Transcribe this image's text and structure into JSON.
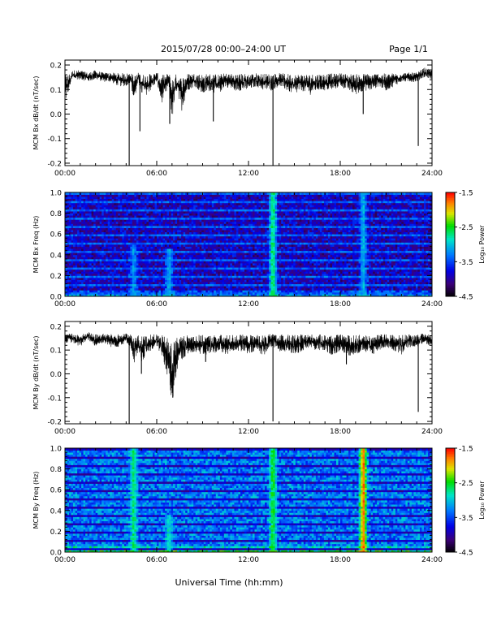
{
  "header": {
    "title": "2015/07/28  00:00–24:00 UT",
    "page": "Page 1/1"
  },
  "footer": {
    "xlabel": "Universal Time (hh:mm)"
  },
  "colors": {
    "trace": "#000000",
    "frame": "#000000",
    "background": "#ffffff"
  },
  "chart_data": [
    {
      "id": "bx_dbdt",
      "type": "line",
      "ylabel": "MCM Bx dB/dt (nT/sec)",
      "xlim": [
        0,
        24
      ],
      "ylim": [
        -0.21,
        0.22
      ],
      "xticks": [
        0,
        6,
        12,
        18,
        24
      ],
      "xtick_labels": [
        "00:00",
        "06:00",
        "12:00",
        "18:00",
        "24:00"
      ],
      "yticks": [
        -0.2,
        -0.1,
        0.0,
        0.1,
        0.2
      ],
      "ytick_labels": [
        "-0.2",
        "-0.1",
        "0.0",
        "0.1",
        "0.2"
      ],
      "series": [
        {
          "x": [
            0,
            0.5,
            1,
            1.5,
            2,
            2.5,
            3,
            3.5,
            4,
            4.3,
            4.5,
            4.8,
            5,
            5.3,
            5.6,
            6,
            6.3,
            6.6,
            6.8,
            7,
            7.3,
            7.6,
            8,
            8.5,
            9,
            9.5,
            10,
            10.5,
            11,
            11.5,
            12,
            12.5,
            13,
            13.5,
            14,
            14.5,
            15,
            15.5,
            16,
            16.5,
            17,
            17.5,
            18,
            18.5,
            19,
            19.5,
            20,
            20.5,
            21,
            21.5,
            22,
            22.5,
            23,
            23.5,
            24
          ],
          "y": [
            0.1,
            0.16,
            0.16,
            0.15,
            0.16,
            0.15,
            0.15,
            0.14,
            0.14,
            0.15,
            0.1,
            0.15,
            0.12,
            0.12,
            0.13,
            0.15,
            0.1,
            0.12,
            0.14,
            0.06,
            0.13,
            0.08,
            0.13,
            0.14,
            0.12,
            0.13,
            0.12,
            0.14,
            0.13,
            0.13,
            0.13,
            0.14,
            0.13,
            0.13,
            0.14,
            0.13,
            0.12,
            0.13,
            0.12,
            0.13,
            0.13,
            0.13,
            0.14,
            0.13,
            0.12,
            0.13,
            0.13,
            0.14,
            0.13,
            0.14,
            0.15,
            0.15,
            0.15,
            0.17,
            0.16
          ],
          "spikes": [
            {
              "x": 4.2,
              "y": -0.21
            },
            {
              "x": 4.9,
              "y": -0.07
            },
            {
              "x": 6.85,
              "y": -0.04
            },
            {
              "x": 9.7,
              "y": -0.03
            },
            {
              "x": 13.6,
              "y": -0.21
            },
            {
              "x": 19.5,
              "y": 0.0
            },
            {
              "x": 23.1,
              "y": -0.13
            }
          ]
        }
      ]
    },
    {
      "id": "bx_spectrogram",
      "type": "heatmap",
      "ylabel": "MCM Bx Freq (Hz)",
      "xlim": [
        0,
        24
      ],
      "ylim": [
        0,
        1.0
      ],
      "xticks": [
        0,
        6,
        12,
        18,
        24
      ],
      "xtick_labels": [
        "00:00",
        "06:00",
        "12:00",
        "18:00",
        "24:00"
      ],
      "yticks": [
        0.0,
        0.2,
        0.4,
        0.6,
        0.8,
        1.0
      ],
      "ytick_labels": [
        "0.0",
        "0.2",
        "0.4",
        "0.6",
        "0.8",
        "1.0"
      ],
      "colorbar": {
        "label": "Log₁₀ Power",
        "range": [
          -4.5,
          -1.5
        ],
        "ticks": [
          -1.5,
          -2.5,
          -3.5,
          -4.5
        ],
        "tick_labels": [
          "-1.5",
          "-2.5",
          "-3.5",
          "-4.5"
        ]
      },
      "base_level": -3.9,
      "line_levels": [
        -3.4
      ],
      "events": [
        {
          "x": 4.5,
          "level": -3.1,
          "fmax": 0.5
        },
        {
          "x": 6.8,
          "level": -3.0,
          "fmax": 0.45
        },
        {
          "x": 13.6,
          "level": -2.5,
          "fmax": 1.0
        },
        {
          "x": 19.5,
          "level": -3.0,
          "fmax": 1.0
        }
      ]
    },
    {
      "id": "by_dbdt",
      "type": "line",
      "ylabel": "MCM By dB/dt (nT/sec)",
      "xlim": [
        0,
        24
      ],
      "ylim": [
        -0.21,
        0.22
      ],
      "xticks": [
        0,
        6,
        12,
        18,
        24
      ],
      "xtick_labels": [
        "00:00",
        "06:00",
        "12:00",
        "18:00",
        "24:00"
      ],
      "yticks": [
        -0.2,
        -0.1,
        0.0,
        0.1,
        0.2
      ],
      "ytick_labels": [
        "-0.2",
        "-0.1",
        "0.0",
        "0.1",
        "0.2"
      ],
      "series": [
        {
          "x": [
            0,
            0.5,
            1,
            1.5,
            2,
            2.5,
            3,
            3.5,
            4,
            4.3,
            4.5,
            4.8,
            5,
            5.3,
            5.6,
            6,
            6.3,
            6.6,
            6.8,
            7,
            7.3,
            7.6,
            8,
            8.5,
            9,
            9.5,
            10,
            10.5,
            11,
            11.5,
            12,
            12.5,
            13,
            13.5,
            14,
            14.5,
            15,
            15.5,
            16,
            16.5,
            17,
            17.5,
            18,
            18.5,
            19,
            19.5,
            20,
            20.5,
            21,
            21.5,
            22,
            22.5,
            23,
            23.5,
            24
          ],
          "y": [
            0.15,
            0.15,
            0.14,
            0.16,
            0.14,
            0.15,
            0.14,
            0.14,
            0.15,
            0.14,
            0.1,
            0.12,
            0.1,
            0.12,
            0.13,
            0.14,
            0.12,
            0.08,
            0.06,
            0.0,
            0.08,
            0.11,
            0.12,
            0.13,
            0.12,
            0.12,
            0.13,
            0.12,
            0.13,
            0.13,
            0.12,
            0.13,
            0.12,
            0.14,
            0.13,
            0.13,
            0.12,
            0.13,
            0.14,
            0.13,
            0.13,
            0.12,
            0.13,
            0.12,
            0.12,
            0.13,
            0.12,
            0.13,
            0.14,
            0.13,
            0.12,
            0.14,
            0.14,
            0.15,
            0.14
          ],
          "spikes": [
            {
              "x": 4.2,
              "y": -0.21
            },
            {
              "x": 5.0,
              "y": 0.0
            },
            {
              "x": 7.05,
              "y": -0.1
            },
            {
              "x": 9.2,
              "y": 0.05
            },
            {
              "x": 13.6,
              "y": -0.2
            },
            {
              "x": 18.4,
              "y": 0.04
            },
            {
              "x": 23.1,
              "y": -0.16
            }
          ]
        }
      ]
    },
    {
      "id": "by_spectrogram",
      "type": "heatmap",
      "ylabel": "MCM By Freq (Hz)",
      "xlim": [
        0,
        24
      ],
      "ylim": [
        0,
        1.0
      ],
      "xticks": [
        0,
        6,
        12,
        18,
        24
      ],
      "xtick_labels": [
        "00:00",
        "06:00",
        "12:00",
        "18:00",
        "24:00"
      ],
      "yticks": [
        0.0,
        0.2,
        0.4,
        0.6,
        0.8,
        1.0
      ],
      "ytick_labels": [
        "0.0",
        "0.2",
        "0.4",
        "0.6",
        "0.8",
        "1.0"
      ],
      "colorbar": {
        "label": "Log₁₀ Power",
        "range": [
          -4.5,
          -1.5
        ],
        "ticks": [
          -1.5,
          -2.5,
          -3.5,
          -4.5
        ],
        "tick_labels": [
          "-1.5",
          "-2.5",
          "-3.5",
          "-4.5"
        ]
      },
      "base_level": -3.3,
      "line_levels": [
        -3.9
      ],
      "events": [
        {
          "x": 4.5,
          "level": -2.6,
          "fmax": 1.0
        },
        {
          "x": 6.8,
          "level": -2.8,
          "fmax": 0.35
        },
        {
          "x": 13.6,
          "level": -2.4,
          "fmax": 1.0
        },
        {
          "x": 19.5,
          "level": -1.6,
          "fmax": 1.0
        }
      ]
    }
  ]
}
